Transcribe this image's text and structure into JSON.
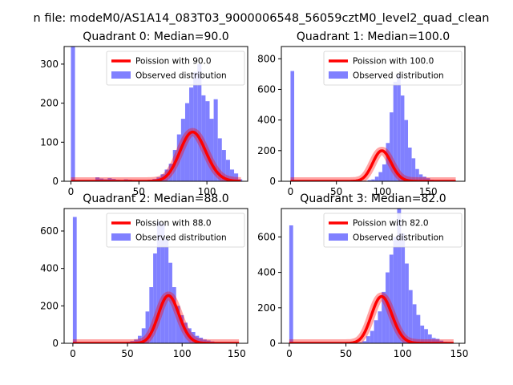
{
  "figure_title": "n file: modeM0/AS1A14_083T03_9000006548_56059cztM0_level2_quad_clean",
  "colors": {
    "line": "#ff0000",
    "hist": "#8080ff",
    "axis": "#000000"
  },
  "legend": {
    "line_prefix": "Poission with ",
    "hist_label": "Observed distribution",
    "placement": "top-right"
  },
  "chart_data": [
    {
      "type": "bar",
      "title": "Quadrant 0: Median=90.0",
      "median": 90.0,
      "line_label": "Poission with 90.0",
      "hist_label": "Observed distribution",
      "xlim": [
        -5,
        130
      ],
      "ylim": [
        0,
        345
      ],
      "xticks": [
        0,
        50,
        100
      ],
      "yticks": [
        0,
        100,
        200,
        300
      ],
      "bins": {
        "start": 0,
        "width": 3,
        "count": 42
      },
      "counts": [
        345,
        0,
        0,
        0,
        0,
        0,
        10,
        7,
        5,
        8,
        6,
        4,
        3,
        5,
        4,
        2,
        0,
        3,
        2,
        4,
        6,
        10,
        18,
        30,
        45,
        80,
        120,
        160,
        200,
        240,
        280,
        300,
        220,
        205,
        160,
        210,
        110,
        80,
        55,
        30,
        20,
        5
      ],
      "poisson_scale": 3000,
      "curve_range": [
        0,
        125
      ]
    },
    {
      "type": "bar",
      "title": "Quadrant 1: Median=100.0",
      "median": 100.0,
      "line_label": "Poission with 100.0",
      "hist_label": "Observed distribution",
      "xlim": [
        -10,
        190
      ],
      "ylim": [
        0,
        880
      ],
      "xticks": [
        0,
        50,
        100,
        150
      ],
      "yticks": [
        0,
        200,
        400,
        600,
        800
      ],
      "bins": {
        "start": 0,
        "width": 4,
        "count": 46
      },
      "counts": [
        720,
        0,
        0,
        0,
        0,
        0,
        0,
        0,
        0,
        0,
        0,
        0,
        0,
        0,
        0,
        0,
        0,
        0,
        0,
        0,
        3,
        8,
        12,
        30,
        60,
        110,
        250,
        450,
        650,
        700,
        560,
        400,
        220,
        150,
        80,
        45,
        30,
        20,
        10,
        5,
        3,
        1,
        1,
        0,
        0,
        0
      ],
      "poisson_scale": 5000,
      "curve_range": [
        0,
        180
      ]
    },
    {
      "type": "bar",
      "title": "Quadrant 2: Median=88.0",
      "median": 88.0,
      "line_label": "Poission with 88.0",
      "hist_label": "Observed distribution",
      "xlim": [
        -8,
        160
      ],
      "ylim": [
        0,
        720
      ],
      "xticks": [
        0,
        50,
        100,
        150
      ],
      "yticks": [
        0,
        200,
        400,
        600
      ],
      "bins": {
        "start": 0,
        "width": 3.5,
        "count": 43
      },
      "counts": [
        675,
        0,
        0,
        0,
        0,
        5,
        5,
        4,
        3,
        4,
        3,
        3,
        3,
        5,
        8,
        12,
        20,
        40,
        80,
        170,
        300,
        480,
        650,
        640,
        560,
        430,
        300,
        200,
        150,
        110,
        80,
        60,
        40,
        30,
        20,
        15,
        10,
        5,
        5,
        3,
        2,
        1,
        1
      ],
      "poisson_scale": 6000,
      "curve_range": [
        0,
        152
      ]
    },
    {
      "type": "bar",
      "title": "Quadrant 3: Median=82.0",
      "median": 82.0,
      "line_label": "Poission with 82.0",
      "hist_label": "Observed distribution",
      "xlim": [
        -7,
        155
      ],
      "ylim": [
        0,
        760
      ],
      "xticks": [
        0,
        50,
        100,
        150
      ],
      "yticks": [
        0,
        200,
        400,
        600
      ],
      "bins": {
        "start": 0,
        "width": 3.4,
        "count": 43
      },
      "counts": [
        665,
        0,
        0,
        0,
        0,
        0,
        0,
        0,
        0,
        0,
        0,
        0,
        0,
        0,
        0,
        0,
        0,
        0,
        5,
        12,
        40,
        70,
        130,
        180,
        290,
        400,
        500,
        600,
        760,
        620,
        450,
        300,
        220,
        160,
        100,
        80,
        50,
        30,
        25,
        15,
        8,
        3,
        1
      ],
      "poisson_scale": 6000,
      "curve_range": [
        0,
        145
      ]
    }
  ]
}
